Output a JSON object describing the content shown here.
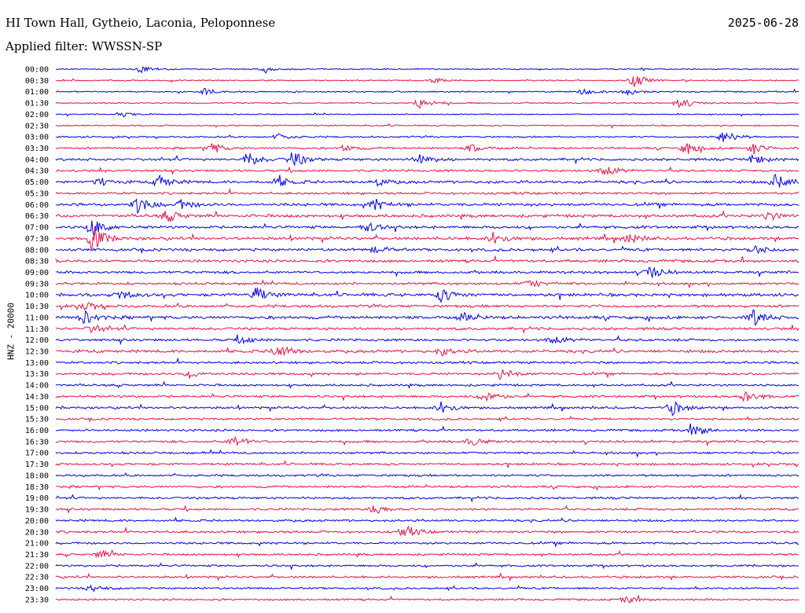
{
  "header": {
    "station": "HI Town Hall, Gytheio, Laconia, Peloponnese",
    "date": "2025-06-28",
    "filter": "Applied filter: WWSSN-SP",
    "channel_label": "HNZ - 20000"
  },
  "colors": {
    "even_row": "#0000ee",
    "odd_row": "#ee1144"
  },
  "chart_data": {
    "type": "line",
    "title": "HI Town Hall, Gytheio, Laconia, Peloponnese",
    "ylabel": "HNZ - 20000",
    "row_labels": [
      "00:00",
      "00:30",
      "01:00",
      "01:30",
      "02:00",
      "02:30",
      "03:00",
      "03:30",
      "04:00",
      "04:30",
      "05:00",
      "05:30",
      "06:00",
      "06:30",
      "07:00",
      "07:30",
      "08:00",
      "08:30",
      "09:00",
      "09:30",
      "10:00",
      "10:30",
      "11:00",
      "11:30",
      "12:00",
      "12:30",
      "13:00",
      "13:30",
      "14:00",
      "14:30",
      "15:00",
      "15:30",
      "16:00",
      "16:30",
      "17:00",
      "17:30",
      "18:00",
      "18:30",
      "19:00",
      "19:30",
      "20:00",
      "20:30",
      "21:00",
      "21:30",
      "22:00",
      "22:30",
      "23:00",
      "23:30"
    ],
    "row_noise_level": [
      0.9,
      0.9,
      1.0,
      1.0,
      0.8,
      1.0,
      1.2,
      1.4,
      1.8,
      1.6,
      2.0,
      1.7,
      2.1,
      2.2,
      2.0,
      2.2,
      2.0,
      2.0,
      1.9,
      1.8,
      2.2,
      2.0,
      2.2,
      1.9,
      1.8,
      2.1,
      1.7,
      1.7,
      1.6,
      1.7,
      1.7,
      1.5,
      1.6,
      1.7,
      1.6,
      1.6,
      1.6,
      1.6,
      1.6,
      1.6,
      1.6,
      1.7,
      1.6,
      1.5,
      1.5,
      1.6,
      1.4,
      1.4
    ],
    "events": [
      {
        "row": 0,
        "t": 0.115,
        "amp": 5
      },
      {
        "row": 0,
        "t": 0.28,
        "amp": 3
      },
      {
        "row": 1,
        "t": 0.78,
        "amp": 9
      },
      {
        "row": 1,
        "t": 0.51,
        "amp": 3
      },
      {
        "row": 2,
        "t": 0.2,
        "amp": 4
      },
      {
        "row": 2,
        "t": 0.71,
        "amp": 4
      },
      {
        "row": 2,
        "t": 0.77,
        "amp": 4
      },
      {
        "row": 3,
        "t": 0.49,
        "amp": 7
      },
      {
        "row": 3,
        "t": 0.84,
        "amp": 7
      },
      {
        "row": 4,
        "t": 0.09,
        "amp": 3
      },
      {
        "row": 6,
        "t": 0.3,
        "amp": 4
      },
      {
        "row": 6,
        "t": 0.9,
        "amp": 9
      },
      {
        "row": 7,
        "t": 0.21,
        "amp": 7
      },
      {
        "row": 7,
        "t": 0.39,
        "amp": 4
      },
      {
        "row": 7,
        "t": 0.56,
        "amp": 5
      },
      {
        "row": 7,
        "t": 0.85,
        "amp": 8
      },
      {
        "row": 7,
        "t": 0.94,
        "amp": 7
      },
      {
        "row": 8,
        "t": 0.26,
        "amp": 9
      },
      {
        "row": 8,
        "t": 0.32,
        "amp": 10
      },
      {
        "row": 8,
        "t": 0.49,
        "amp": 8
      },
      {
        "row": 8,
        "t": 0.94,
        "amp": 6
      },
      {
        "row": 9,
        "t": 0.74,
        "amp": 9
      },
      {
        "row": 10,
        "t": 0.06,
        "amp": 5
      },
      {
        "row": 10,
        "t": 0.14,
        "amp": 8
      },
      {
        "row": 10,
        "t": 0.3,
        "amp": 6
      },
      {
        "row": 10,
        "t": 0.43,
        "amp": 5
      },
      {
        "row": 10,
        "t": 0.97,
        "amp": 10
      },
      {
        "row": 12,
        "t": 0.11,
        "amp": 10
      },
      {
        "row": 12,
        "t": 0.17,
        "amp": 6
      },
      {
        "row": 12,
        "t": 0.43,
        "amp": 7
      },
      {
        "row": 13,
        "t": 0.15,
        "amp": 7
      },
      {
        "row": 13,
        "t": 0.96,
        "amp": 5
      },
      {
        "row": 14,
        "t": 0.05,
        "amp": 12
      },
      {
        "row": 14,
        "t": 0.42,
        "amp": 6
      },
      {
        "row": 15,
        "t": 0.05,
        "amp": 16
      },
      {
        "row": 15,
        "t": 0.59,
        "amp": 8
      },
      {
        "row": 15,
        "t": 0.77,
        "amp": 6
      },
      {
        "row": 16,
        "t": 0.43,
        "amp": 4
      },
      {
        "row": 16,
        "t": 0.94,
        "amp": 6
      },
      {
        "row": 18,
        "t": 0.8,
        "amp": 9
      },
      {
        "row": 19,
        "t": 0.64,
        "amp": 5
      },
      {
        "row": 20,
        "t": 0.09,
        "amp": 5
      },
      {
        "row": 20,
        "t": 0.27,
        "amp": 9
      },
      {
        "row": 20,
        "t": 0.52,
        "amp": 9
      },
      {
        "row": 21,
        "t": 0.04,
        "amp": 5
      },
      {
        "row": 22,
        "t": 0.04,
        "amp": 8
      },
      {
        "row": 22,
        "t": 0.55,
        "amp": 5
      },
      {
        "row": 22,
        "t": 0.94,
        "amp": 10
      },
      {
        "row": 23,
        "t": 0.05,
        "amp": 5
      },
      {
        "row": 24,
        "t": 0.25,
        "amp": 5
      },
      {
        "row": 24,
        "t": 0.67,
        "amp": 7
      },
      {
        "row": 25,
        "t": 0.3,
        "amp": 9
      },
      {
        "row": 25,
        "t": 0.52,
        "amp": 5
      },
      {
        "row": 27,
        "t": 0.18,
        "amp": 5
      },
      {
        "row": 27,
        "t": 0.6,
        "amp": 8
      },
      {
        "row": 29,
        "t": 0.58,
        "amp": 8
      },
      {
        "row": 29,
        "t": 0.93,
        "amp": 8
      },
      {
        "row": 30,
        "t": 0.52,
        "amp": 8
      },
      {
        "row": 30,
        "t": 0.83,
        "amp": 9
      },
      {
        "row": 32,
        "t": 0.86,
        "amp": 8
      },
      {
        "row": 33,
        "t": 0.24,
        "amp": 7
      },
      {
        "row": 33,
        "t": 0.56,
        "amp": 5
      },
      {
        "row": 39,
        "t": 0.43,
        "amp": 6
      },
      {
        "row": 41,
        "t": 0.47,
        "amp": 8
      },
      {
        "row": 43,
        "t": 0.06,
        "amp": 5
      },
      {
        "row": 46,
        "t": 0.05,
        "amp": 4
      },
      {
        "row": 47,
        "t": 0.77,
        "amp": 4
      }
    ]
  }
}
